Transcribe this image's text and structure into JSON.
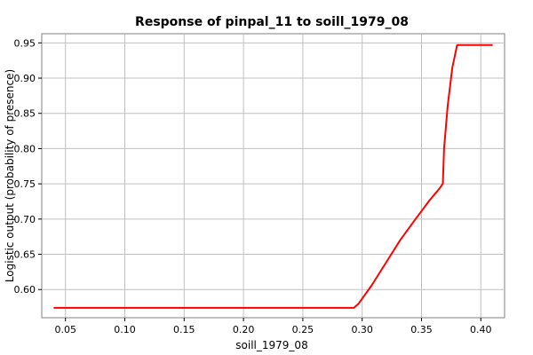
{
  "chart_data": {
    "type": "line",
    "title": "Response of pinpal_11 to soill_1979_08",
    "xlabel": "soill_1979_08",
    "ylabel": "Logistic output (probability of presence)",
    "xlim": [
      0.03,
      0.42
    ],
    "ylim": [
      0.56,
      0.963
    ],
    "x_ticks": [
      "0.05",
      "0.10",
      "0.15",
      "0.20",
      "0.25",
      "0.30",
      "0.35",
      "0.40"
    ],
    "y_ticks": [
      "0.60",
      "0.65",
      "0.70",
      "0.75",
      "0.80",
      "0.85",
      "0.90",
      "0.95"
    ],
    "grid": true,
    "series_color": "#ff0000",
    "x": [
      0.04,
      0.293,
      0.297,
      0.308,
      0.32,
      0.332,
      0.345,
      0.357,
      0.365,
      0.368,
      0.369,
      0.372,
      0.376,
      0.38,
      0.385,
      0.41
    ],
    "y": [
      0.574,
      0.574,
      0.58,
      0.606,
      0.638,
      0.67,
      0.7,
      0.727,
      0.743,
      0.75,
      0.8,
      0.86,
      0.915,
      0.947,
      0.947,
      0.947
    ]
  }
}
